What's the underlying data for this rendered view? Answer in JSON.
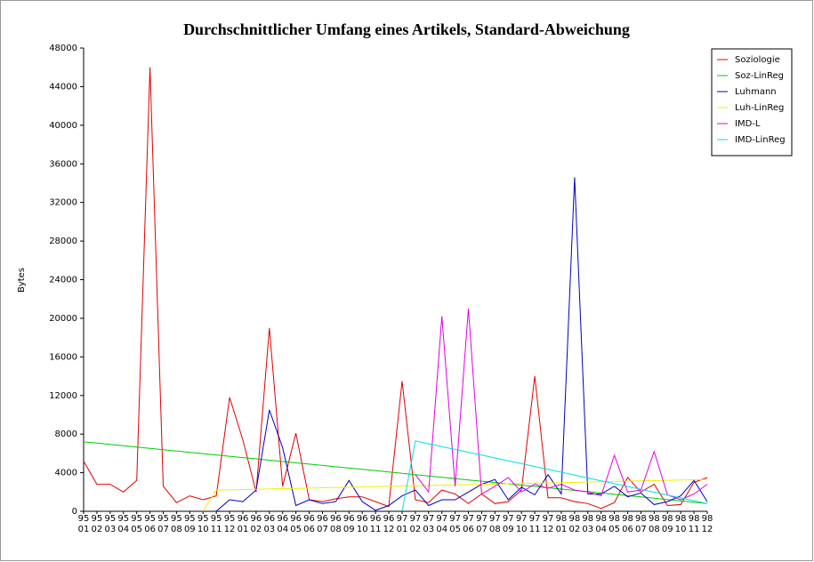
{
  "chart_data": {
    "type": "line",
    "title": "Durchschnittlicher Umfang eines Artikels,  Standard-Abweichung",
    "y_label": "Bytes",
    "categories": [
      [
        "95",
        "01"
      ],
      [
        "95",
        "02"
      ],
      [
        "95",
        "03"
      ],
      [
        "95",
        "04"
      ],
      [
        "95",
        "05"
      ],
      [
        "95",
        "06"
      ],
      [
        "95",
        "07"
      ],
      [
        "95",
        "08"
      ],
      [
        "95",
        "09"
      ],
      [
        "95",
        "10"
      ],
      [
        "95",
        "11"
      ],
      [
        "95",
        "12"
      ],
      [
        "96",
        "01"
      ],
      [
        "96",
        "02"
      ],
      [
        "96",
        "03"
      ],
      [
        "96",
        "04"
      ],
      [
        "96",
        "05"
      ],
      [
        "96",
        "06"
      ],
      [
        "96",
        "07"
      ],
      [
        "96",
        "08"
      ],
      [
        "96",
        "09"
      ],
      [
        "96",
        "10"
      ],
      [
        "96",
        "11"
      ],
      [
        "96",
        "12"
      ],
      [
        "97",
        "01"
      ],
      [
        "97",
        "02"
      ],
      [
        "97",
        "03"
      ],
      [
        "97",
        "04"
      ],
      [
        "97",
        "05"
      ],
      [
        "97",
        "06"
      ],
      [
        "97",
        "07"
      ],
      [
        "97",
        "08"
      ],
      [
        "97",
        "09"
      ],
      [
        "97",
        "10"
      ],
      [
        "97",
        "11"
      ],
      [
        "97",
        "12"
      ],
      [
        "98",
        "01"
      ],
      [
        "98",
        "02"
      ],
      [
        "98",
        "03"
      ],
      [
        "98",
        "04"
      ],
      [
        "98",
        "05"
      ],
      [
        "98",
        "06"
      ],
      [
        "98",
        "07"
      ],
      [
        "98",
        "08"
      ],
      [
        "98",
        "09"
      ],
      [
        "98",
        "10"
      ],
      [
        "98",
        "11"
      ],
      [
        "98",
        "12"
      ]
    ],
    "ylim": [
      0,
      48000
    ],
    "yticks": [
      0,
      4000,
      8000,
      12000,
      16000,
      20000,
      24000,
      28000,
      32000,
      36000,
      40000,
      44000,
      48000
    ],
    "grid": false,
    "legend": "upper right",
    "series": [
      {
        "name": "Soziologie",
        "color": "#e00000",
        "values": [
          5200,
          2800,
          2800,
          2000,
          3200,
          46000,
          2600,
          900,
          1600,
          1200,
          1600,
          11800,
          7400,
          2000,
          19000,
          2600,
          8100,
          1200,
          1000,
          1300,
          1500,
          1500,
          1000,
          500,
          13500,
          1200,
          900,
          2200,
          1800,
          800,
          1800,
          800,
          1000,
          2200,
          14000,
          1400,
          1400,
          1000,
          800,
          300,
          900,
          3500,
          2000,
          2800,
          600,
          700,
          3000,
          3500
        ]
      },
      {
        "name": "Soz-LinReg",
        "color": "#00cc00",
        "values": [
          7200,
          7064,
          6928,
          6792,
          6656,
          6520,
          6384,
          6248,
          6112,
          5976,
          5840,
          5704,
          5568,
          5432,
          5296,
          5160,
          5024,
          4888,
          4752,
          4616,
          4480,
          4344,
          4208,
          4072,
          3936,
          3800,
          3664,
          3528,
          3392,
          3256,
          3120,
          2984,
          2848,
          2712,
          2576,
          2440,
          2304,
          2168,
          2032,
          1896,
          1760,
          1624,
          1488,
          1352,
          1216,
          1080,
          944,
          808
        ]
      },
      {
        "name": "Luhmann",
        "color": "#0000c0",
        "values": [
          null,
          null,
          null,
          null,
          null,
          null,
          null,
          null,
          null,
          null,
          0,
          1200,
          1000,
          2200,
          10500,
          6600,
          600,
          1200,
          800,
          1000,
          3200,
          1000,
          100,
          600,
          1600,
          2200,
          600,
          1200,
          1200,
          2000,
          2800,
          3300,
          1200,
          2500,
          1700,
          3800,
          1800,
          34600,
          1800,
          1800,
          2600,
          1500,
          1900,
          700,
          1000,
          1600,
          3200,
          1000
        ]
      },
      {
        "name": "Luh-LinReg",
        "color": "#f0f000",
        "values": [
          null,
          null,
          null,
          null,
          null,
          null,
          null,
          null,
          null,
          0,
          2200,
          2230,
          2259,
          2289,
          2319,
          2349,
          2378,
          2408,
          2438,
          2468,
          2497,
          2527,
          2557,
          2586,
          2616,
          2646,
          2676,
          2705,
          2735,
          2765,
          2795,
          2824,
          2854,
          2884,
          2914,
          2943,
          2973,
          3003,
          3032,
          3062,
          3092,
          3122,
          3151,
          3181,
          3211,
          3241,
          3270,
          3300
        ]
      },
      {
        "name": "IMD-L",
        "color": "#e000e0",
        "values": [
          null,
          null,
          null,
          null,
          null,
          null,
          null,
          null,
          null,
          null,
          null,
          null,
          null,
          null,
          null,
          null,
          null,
          null,
          null,
          null,
          null,
          null,
          null,
          null,
          null,
          3800,
          2000,
          20200,
          2600,
          21000,
          1800,
          2600,
          3500,
          2000,
          2800,
          2400,
          2800,
          2200,
          2000,
          1600,
          5800,
          2000,
          2200,
          6200,
          1700,
          1200,
          1800,
          2800
        ]
      },
      {
        "name": "IMD-LinReg",
        "color": "#00e0e0",
        "values": [
          null,
          null,
          null,
          null,
          null,
          null,
          null,
          null,
          null,
          null,
          null,
          null,
          null,
          null,
          null,
          null,
          null,
          null,
          null,
          null,
          null,
          null,
          null,
          null,
          0,
          7300,
          7005,
          6709,
          6414,
          6118,
          5823,
          5527,
          5232,
          4936,
          4641,
          4345,
          4050,
          3755,
          3459,
          3164,
          2868,
          2573,
          2277,
          1982,
          1686,
          1391,
          1095,
          800
        ]
      }
    ]
  }
}
